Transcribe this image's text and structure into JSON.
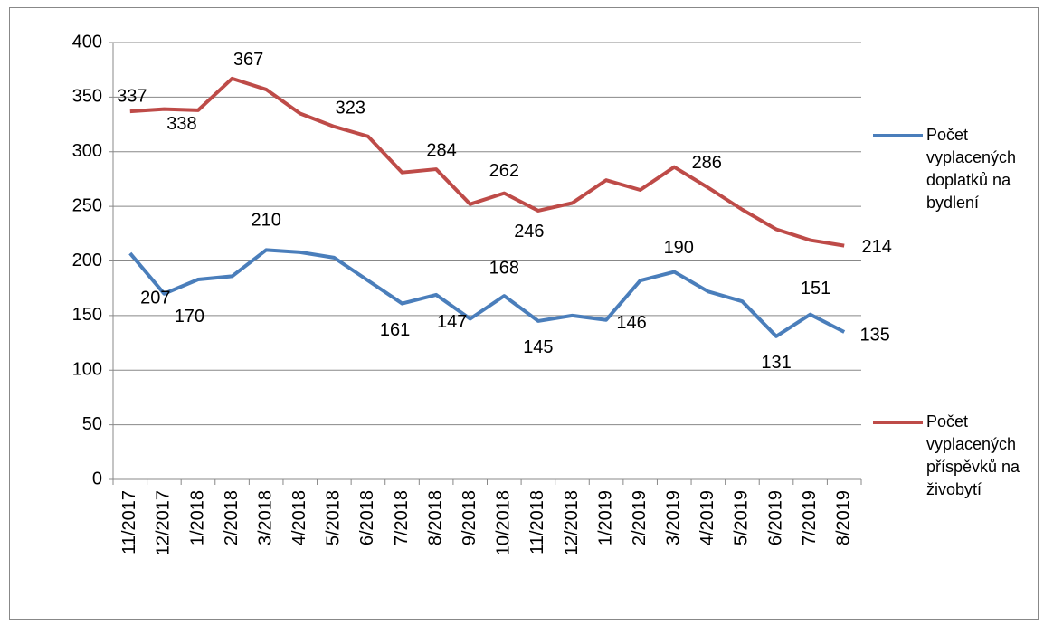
{
  "chart_data": {
    "type": "line",
    "categories": [
      "11/2017",
      "12/2017",
      "1/2018",
      "2/2018",
      "3/2018",
      "4/2018",
      "5/2018",
      "6/2018",
      "7/2018",
      "8/2018",
      "9/2018",
      "10/2018",
      "11/2018",
      "12/2018",
      "1/2019",
      "2/2019",
      "3/2019",
      "4/2019",
      "5/2019",
      "6/2019",
      "7/2019",
      "8/2019"
    ],
    "series": [
      {
        "name": "Počet vyplacených doplatků na bydlení",
        "color": "#4a7ebb",
        "values": [
          207,
          170,
          183,
          186,
          210,
          208,
          203,
          182,
          161,
          169,
          147,
          168,
          145,
          150,
          146,
          182,
          190,
          172,
          163,
          131,
          151,
          135
        ],
        "value_labels": [
          207,
          170,
          null,
          null,
          210,
          null,
          null,
          null,
          161,
          null,
          147,
          168,
          145,
          null,
          146,
          null,
          190,
          null,
          null,
          131,
          151,
          135
        ]
      },
      {
        "name": "Počet vyplacených příspěvků na živobytí",
        "color": "#be4b48",
        "values": [
          337,
          339,
          338,
          367,
          357,
          335,
          323,
          314,
          281,
          284,
          252,
          262,
          246,
          253,
          274,
          265,
          286,
          267,
          247,
          229,
          219,
          214
        ],
        "value_labels": [
          337,
          null,
          338,
          367,
          null,
          null,
          323,
          null,
          null,
          284,
          null,
          262,
          246,
          null,
          null,
          null,
          286,
          null,
          null,
          null,
          null,
          214
        ]
      }
    ],
    "ylim": [
      0,
      400
    ],
    "yticks": [
      0,
      50,
      100,
      150,
      200,
      250,
      300,
      350,
      400
    ],
    "grid": true,
    "legend": "right"
  }
}
